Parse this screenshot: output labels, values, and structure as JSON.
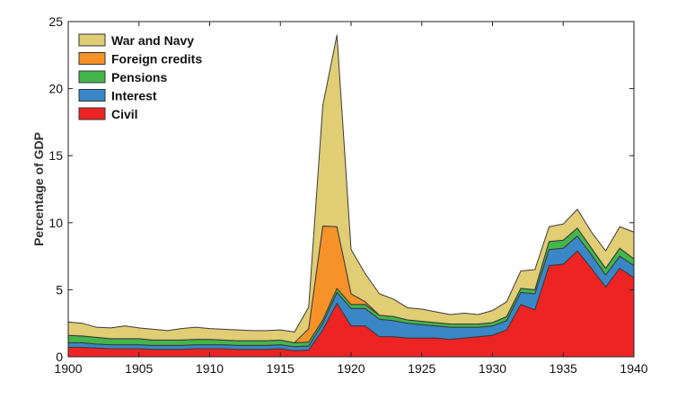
{
  "chart_data": {
    "type": "area",
    "stacked": true,
    "title": "",
    "xlabel": "",
    "ylabel": "Percentage of GDP",
    "xlim": [
      1900,
      1940
    ],
    "ylim": [
      0,
      25
    ],
    "xticks": [
      1900,
      1905,
      1910,
      1915,
      1920,
      1925,
      1930,
      1935,
      1940
    ],
    "yticks": [
      0,
      5,
      10,
      15,
      20,
      25
    ],
    "grid": false,
    "legend_position": "top-left",
    "x": [
      1900,
      1901,
      1902,
      1903,
      1904,
      1905,
      1906,
      1907,
      1908,
      1909,
      1910,
      1911,
      1912,
      1913,
      1914,
      1915,
      1916,
      1917,
      1918,
      1919,
      1920,
      1921,
      1922,
      1923,
      1924,
      1925,
      1926,
      1927,
      1928,
      1929,
      1930,
      1931,
      1932,
      1933,
      1934,
      1935,
      1936,
      1937,
      1938,
      1939,
      1940
    ],
    "series": [
      {
        "name": "Civil",
        "color": "#ee2424",
        "values": [
          0.7,
          0.7,
          0.65,
          0.6,
          0.6,
          0.6,
          0.55,
          0.55,
          0.55,
          0.6,
          0.6,
          0.6,
          0.55,
          0.55,
          0.55,
          0.6,
          0.45,
          0.5,
          2.0,
          4.0,
          2.3,
          2.3,
          1.5,
          1.5,
          1.4,
          1.4,
          1.4,
          1.3,
          1.4,
          1.5,
          1.6,
          2.0,
          3.9,
          3.5,
          6.8,
          6.9,
          7.9,
          6.6,
          5.2,
          6.6,
          5.9
        ]
      },
      {
        "name": "Interest",
        "color": "#3a87c8",
        "values": [
          0.35,
          0.35,
          0.3,
          0.3,
          0.3,
          0.3,
          0.3,
          0.3,
          0.3,
          0.3,
          0.3,
          0.3,
          0.3,
          0.3,
          0.3,
          0.3,
          0.3,
          0.3,
          0.5,
          0.8,
          1.3,
          1.3,
          1.3,
          1.2,
          1.1,
          1.0,
          0.9,
          0.9,
          0.8,
          0.7,
          0.7,
          0.7,
          0.9,
          1.2,
          1.2,
          1.2,
          1.1,
          1.0,
          0.9,
          0.9,
          0.9
        ]
      },
      {
        "name": "Pensions",
        "color": "#44b54a",
        "values": [
          0.55,
          0.5,
          0.5,
          0.45,
          0.45,
          0.45,
          0.4,
          0.4,
          0.4,
          0.4,
          0.4,
          0.35,
          0.35,
          0.35,
          0.35,
          0.35,
          0.3,
          0.3,
          0.25,
          0.3,
          0.3,
          0.3,
          0.3,
          0.3,
          0.25,
          0.25,
          0.25,
          0.25,
          0.25,
          0.25,
          0.25,
          0.3,
          0.3,
          0.3,
          0.6,
          0.6,
          0.6,
          0.5,
          0.5,
          0.6,
          0.5
        ]
      },
      {
        "name": "Foreign credits",
        "color": "#f79228",
        "values": [
          0,
          0,
          0,
          0,
          0,
          0,
          0,
          0,
          0,
          0,
          0,
          0,
          0,
          0,
          0,
          0,
          0,
          1.0,
          7.0,
          4.6,
          0.8,
          0.2,
          0,
          0,
          0,
          0,
          0,
          0,
          0,
          0,
          0,
          0,
          0,
          0,
          0,
          0,
          0,
          0,
          0,
          0,
          0
        ]
      },
      {
        "name": "War and Navy",
        "color": "#e0cd74",
        "values": [
          1.0,
          0.95,
          0.75,
          0.8,
          0.95,
          0.8,
          0.8,
          0.7,
          0.85,
          0.9,
          0.8,
          0.8,
          0.8,
          0.75,
          0.75,
          0.75,
          0.8,
          1.6,
          9.0,
          14.3,
          3.3,
          2.1,
          1.6,
          1.3,
          0.9,
          0.9,
          0.8,
          0.7,
          0.8,
          0.7,
          0.9,
          1.1,
          1.3,
          1.5,
          1.1,
          1.2,
          1.4,
          1.2,
          1.3,
          1.6,
          2.0
        ]
      }
    ]
  }
}
